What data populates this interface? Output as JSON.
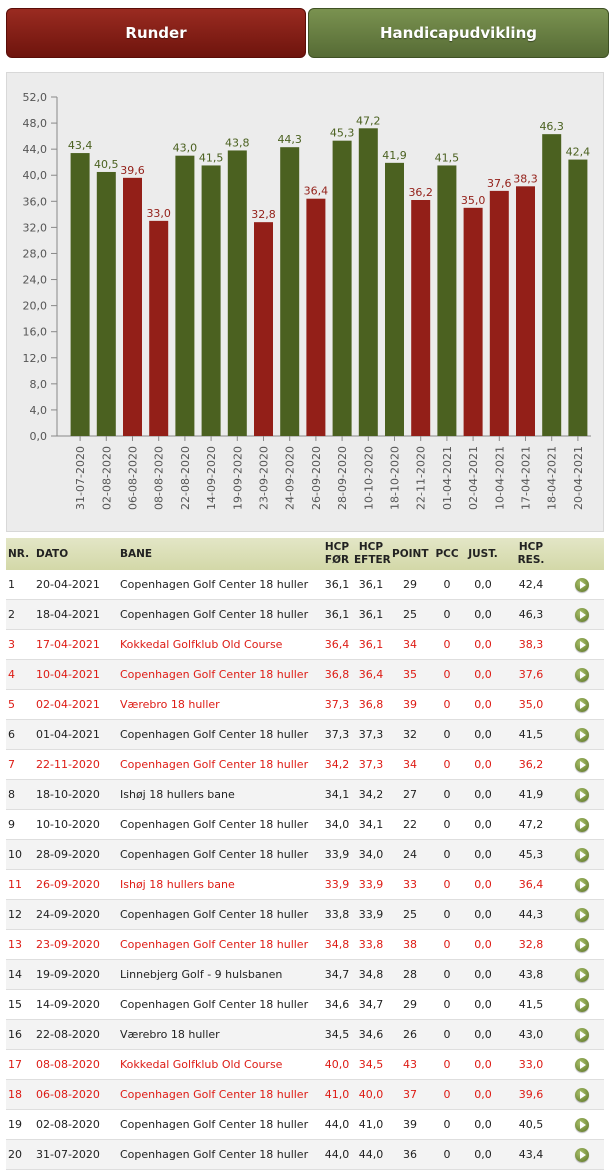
{
  "tabs": {
    "runder": "Runder",
    "handicap": "Handicapudvikling"
  },
  "colors": {
    "green": "#4b6120",
    "red": "#931f18",
    "green_label": "#4b6120",
    "red_label": "#931f18"
  },
  "chart_data": {
    "type": "bar",
    "ylim": [
      0,
      52
    ],
    "yticks": [
      "52,0",
      "48,0",
      "44,0",
      "40,0",
      "36,0",
      "32,0",
      "28,0",
      "24,0",
      "20,0",
      "16,0",
      "12,0",
      "8,0",
      "4,0",
      "0,0"
    ],
    "categories": [
      "31-07-2020",
      "02-08-2020",
      "06-08-2020",
      "08-08-2020",
      "22-08-2020",
      "14-09-2020",
      "19-09-2020",
      "23-09-2020",
      "24-09-2020",
      "26-09-2020",
      "28-09-2020",
      "10-10-2020",
      "18-10-2020",
      "22-11-2020",
      "01-04-2021",
      "02-04-2021",
      "10-04-2021",
      "17-04-2021",
      "18-04-2021",
      "20-04-2021"
    ],
    "values": [
      43.4,
      40.5,
      39.6,
      33.0,
      43.0,
      41.5,
      43.8,
      32.8,
      44.3,
      36.4,
      45.3,
      47.2,
      41.9,
      36.2,
      41.5,
      35.0,
      37.6,
      38.3,
      46.3,
      42.4
    ],
    "labels": [
      "43,4",
      "40,5",
      "39,6",
      "33,0",
      "43,0",
      "41,5",
      "43,8",
      "32,8",
      "44,3",
      "36,4",
      "45,3",
      "47,2",
      "41,9",
      "36,2",
      "41,5",
      "35,0",
      "37,6",
      "38,3",
      "46,3",
      "42,4"
    ],
    "status": [
      "green",
      "green",
      "red",
      "red",
      "green",
      "green",
      "green",
      "red",
      "green",
      "red",
      "green",
      "green",
      "green",
      "red",
      "green",
      "red",
      "red",
      "red",
      "green",
      "green"
    ],
    "grid": false
  },
  "table": {
    "headers": {
      "nr": "NR.",
      "dato": "DATO",
      "bane": "BANE",
      "hcp_for_1": "HCP",
      "hcp_for_2": "FØR",
      "hcp_efter_1": "HCP",
      "hcp_efter_2": "EFTER",
      "point": "POINT",
      "pcc": "PCC",
      "just": "JUST.",
      "hcp_res": "HCP RES."
    },
    "rows": [
      {
        "nr": "1",
        "dato": "20-04-2021",
        "bane": "Copenhagen Golf Center 18 huller",
        "for": "36,1",
        "efter": "36,1",
        "point": "29",
        "pcc": "0",
        "just": "0,0",
        "res": "42,4",
        "red": false
      },
      {
        "nr": "2",
        "dato": "18-04-2021",
        "bane": "Copenhagen Golf Center 18 huller",
        "for": "36,1",
        "efter": "36,1",
        "point": "25",
        "pcc": "0",
        "just": "0,0",
        "res": "46,3",
        "red": false
      },
      {
        "nr": "3",
        "dato": "17-04-2021",
        "bane": "Kokkedal Golfklub Old Course",
        "for": "36,4",
        "efter": "36,1",
        "point": "34",
        "pcc": "0",
        "just": "0,0",
        "res": "38,3",
        "red": true
      },
      {
        "nr": "4",
        "dato": "10-04-2021",
        "bane": "Copenhagen Golf Center 18 huller",
        "for": "36,8",
        "efter": "36,4",
        "point": "35",
        "pcc": "0",
        "just": "0,0",
        "res": "37,6",
        "red": true
      },
      {
        "nr": "5",
        "dato": "02-04-2021",
        "bane": "Værebro 18 huller",
        "for": "37,3",
        "efter": "36,8",
        "point": "39",
        "pcc": "0",
        "just": "0,0",
        "res": "35,0",
        "red": true
      },
      {
        "nr": "6",
        "dato": "01-04-2021",
        "bane": "Copenhagen Golf Center 18 huller",
        "for": "37,3",
        "efter": "37,3",
        "point": "32",
        "pcc": "0",
        "just": "0,0",
        "res": "41,5",
        "red": false
      },
      {
        "nr": "7",
        "dato": "22-11-2020",
        "bane": "Copenhagen Golf Center 18 huller",
        "for": "34,2",
        "efter": "37,3",
        "point": "34",
        "pcc": "0",
        "just": "0,0",
        "res": "36,2",
        "red": true
      },
      {
        "nr": "8",
        "dato": "18-10-2020",
        "bane": "Ishøj 18 hullers bane",
        "for": "34,1",
        "efter": "34,2",
        "point": "27",
        "pcc": "0",
        "just": "0,0",
        "res": "41,9",
        "red": false
      },
      {
        "nr": "9",
        "dato": "10-10-2020",
        "bane": "Copenhagen Golf Center 18 huller",
        "for": "34,0",
        "efter": "34,1",
        "point": "22",
        "pcc": "0",
        "just": "0,0",
        "res": "47,2",
        "red": false
      },
      {
        "nr": "10",
        "dato": "28-09-2020",
        "bane": "Copenhagen Golf Center 18 huller",
        "for": "33,9",
        "efter": "34,0",
        "point": "24",
        "pcc": "0",
        "just": "0,0",
        "res": "45,3",
        "red": false
      },
      {
        "nr": "11",
        "dato": "26-09-2020",
        "bane": "Ishøj 18 hullers bane",
        "for": "33,9",
        "efter": "33,9",
        "point": "33",
        "pcc": "0",
        "just": "0,0",
        "res": "36,4",
        "red": true
      },
      {
        "nr": "12",
        "dato": "24-09-2020",
        "bane": "Copenhagen Golf Center 18 huller",
        "for": "33,8",
        "efter": "33,9",
        "point": "25",
        "pcc": "0",
        "just": "0,0",
        "res": "44,3",
        "red": false
      },
      {
        "nr": "13",
        "dato": "23-09-2020",
        "bane": "Copenhagen Golf Center 18 huller",
        "for": "34,8",
        "efter": "33,8",
        "point": "38",
        "pcc": "0",
        "just": "0,0",
        "res": "32,8",
        "red": true
      },
      {
        "nr": "14",
        "dato": "19-09-2020",
        "bane": "Linnebjerg Golf - 9 hulsbanen",
        "for": "34,7",
        "efter": "34,8",
        "point": "28",
        "pcc": "0",
        "just": "0,0",
        "res": "43,8",
        "red": false
      },
      {
        "nr": "15",
        "dato": "14-09-2020",
        "bane": "Copenhagen Golf Center 18 huller",
        "for": "34,6",
        "efter": "34,7",
        "point": "29",
        "pcc": "0",
        "just": "0,0",
        "res": "41,5",
        "red": false
      },
      {
        "nr": "16",
        "dato": "22-08-2020",
        "bane": "Værebro 18 huller",
        "for": "34,5",
        "efter": "34,6",
        "point": "26",
        "pcc": "0",
        "just": "0,0",
        "res": "43,0",
        "red": false
      },
      {
        "nr": "17",
        "dato": "08-08-2020",
        "bane": "Kokkedal Golfklub Old Course",
        "for": "40,0",
        "efter": "34,5",
        "point": "43",
        "pcc": "0",
        "just": "0,0",
        "res": "33,0",
        "red": true
      },
      {
        "nr": "18",
        "dato": "06-08-2020",
        "bane": "Copenhagen Golf Center 18 huller",
        "for": "41,0",
        "efter": "40,0",
        "point": "37",
        "pcc": "0",
        "just": "0,0",
        "res": "39,6",
        "red": true
      },
      {
        "nr": "19",
        "dato": "02-08-2020",
        "bane": "Copenhagen Golf Center 18 huller",
        "for": "44,0",
        "efter": "41,0",
        "point": "39",
        "pcc": "0",
        "just": "0,0",
        "res": "40,5",
        "red": false
      },
      {
        "nr": "20",
        "dato": "31-07-2020",
        "bane": "Copenhagen Golf Center 18 huller",
        "for": "44,0",
        "efter": "44,0",
        "point": "36",
        "pcc": "0",
        "just": "0,0",
        "res": "43,4",
        "red": false
      }
    ]
  }
}
